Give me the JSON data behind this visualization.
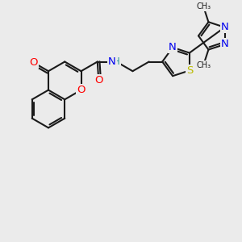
{
  "bg_color": "#ebebeb",
  "bond_color": "#1a1a1a",
  "bond_width": 1.5,
  "atom_colors": {
    "O": "#ff0000",
    "N": "#0000ee",
    "S": "#bbbb00",
    "H": "#339999",
    "C": "#1a1a1a"
  },
  "font_size": 8.5,
  "fig_size": [
    3.0,
    3.0
  ],
  "dpi": 100
}
